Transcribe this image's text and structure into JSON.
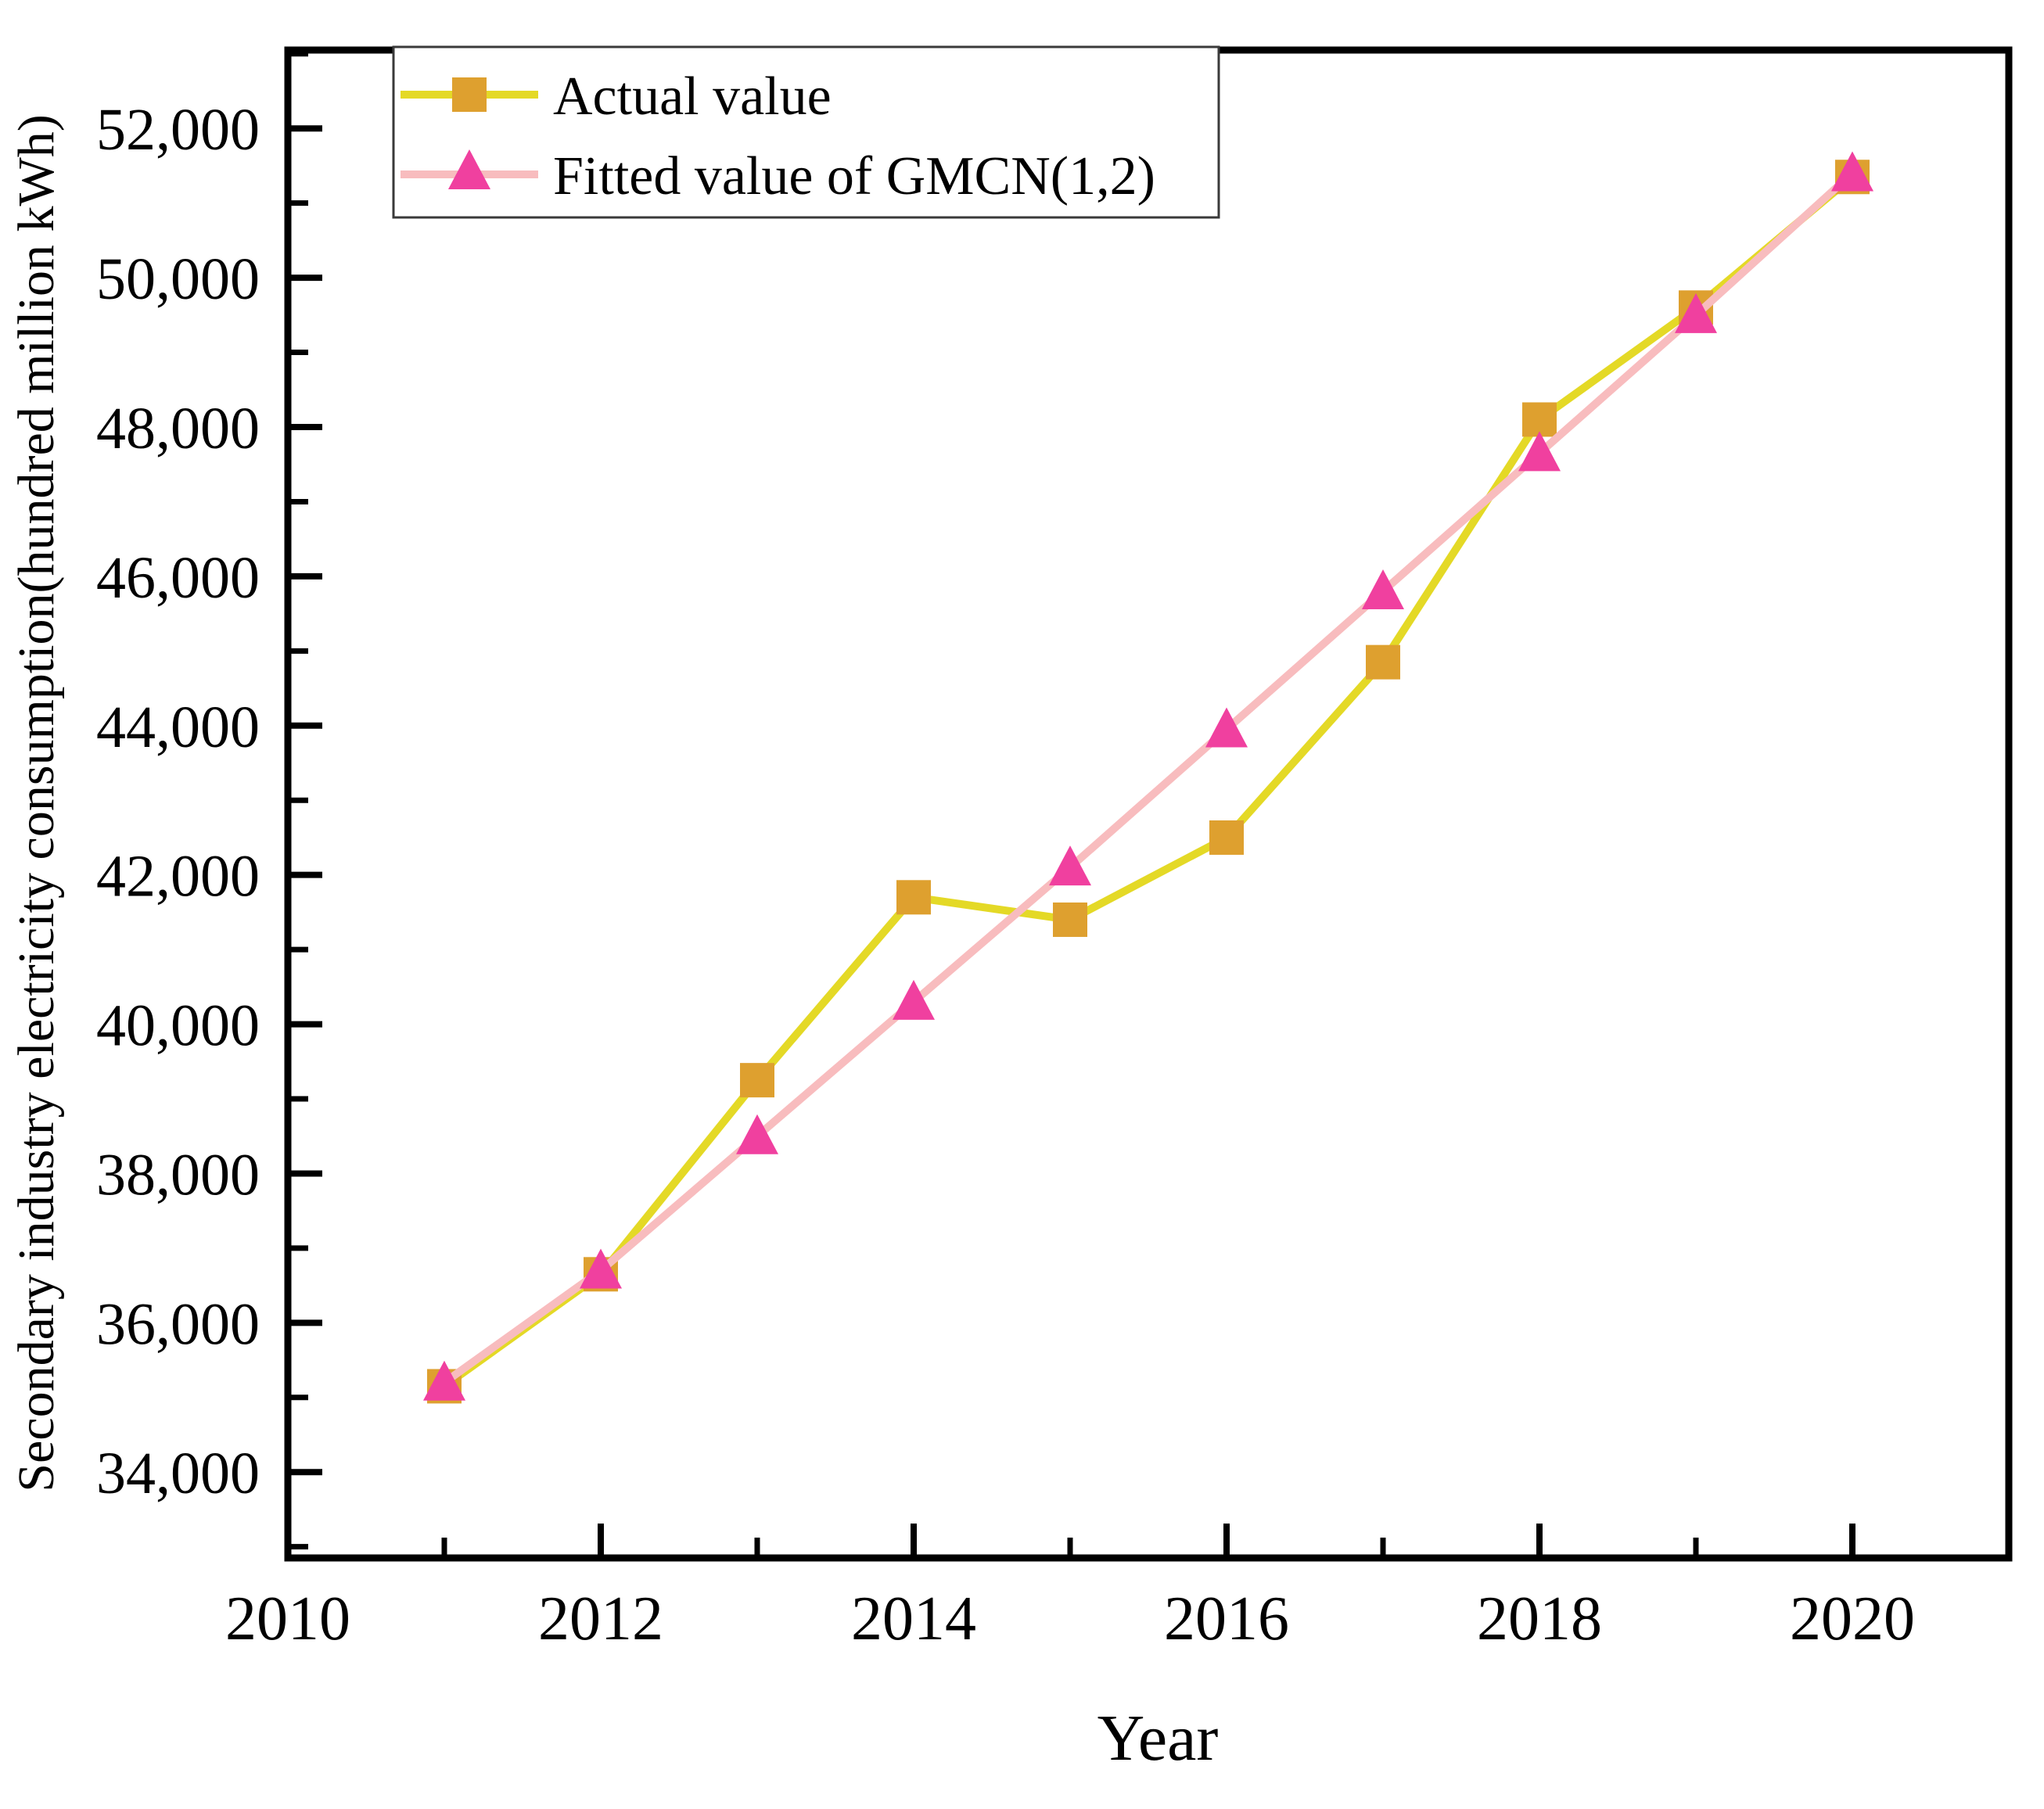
{
  "figure": {
    "background": "#ffffff",
    "axis_color": "#000000"
  },
  "chart_data": {
    "type": "line",
    "title": "",
    "xlabel": "Year",
    "ylabel": "Secondary industry electricity consumption(hundred million kWh)",
    "x": [
      2011,
      2012,
      2013,
      2014,
      2015,
      2016,
      2017,
      2018,
      2019,
      2020
    ],
    "series": [
      {
        "name": "Actual value",
        "marker": "square",
        "line_color": "#e4d926",
        "marker_color": "#dea02f",
        "values": [
          35150,
          36650,
          39250,
          41700,
          41400,
          42500,
          44850,
          48100,
          49600,
          51350
        ]
      },
      {
        "name": "Fitted value of GMCN(1,2)",
        "marker": "triangle",
        "line_color": "#f8bcbe",
        "marker_color": "#f0409f",
        "values": [
          35200,
          36700,
          38500,
          40300,
          42100,
          43950,
          45800,
          47650,
          49500,
          51400
        ]
      }
    ],
    "xlim": [
      2010,
      2021
    ],
    "ylim": [
      32850,
      53050
    ],
    "x_major_ticks": [
      2010,
      2012,
      2014,
      2016,
      2018,
      2020
    ],
    "x_tick_labels": [
      "2010",
      "2012",
      "2014",
      "2016",
      "2018",
      "2020"
    ],
    "x_minor_ticks": [
      2011,
      2013,
      2015,
      2017,
      2019
    ],
    "y_major_ticks": [
      34000,
      36000,
      38000,
      40000,
      42000,
      44000,
      46000,
      48000,
      50000,
      52000
    ],
    "y_tick_labels": [
      "34,000",
      "36,000",
      "38,000",
      "40,000",
      "42,000",
      "44,000",
      "46,000",
      "48,000",
      "50,000",
      "52,000"
    ],
    "y_minor_ticks": [
      33000,
      35000,
      37000,
      39000,
      41000,
      43000,
      45000,
      47000,
      49000,
      51000,
      53000
    ],
    "grid": false,
    "legend_position": "top-left",
    "legend_border_color": "#3a3a3a"
  }
}
